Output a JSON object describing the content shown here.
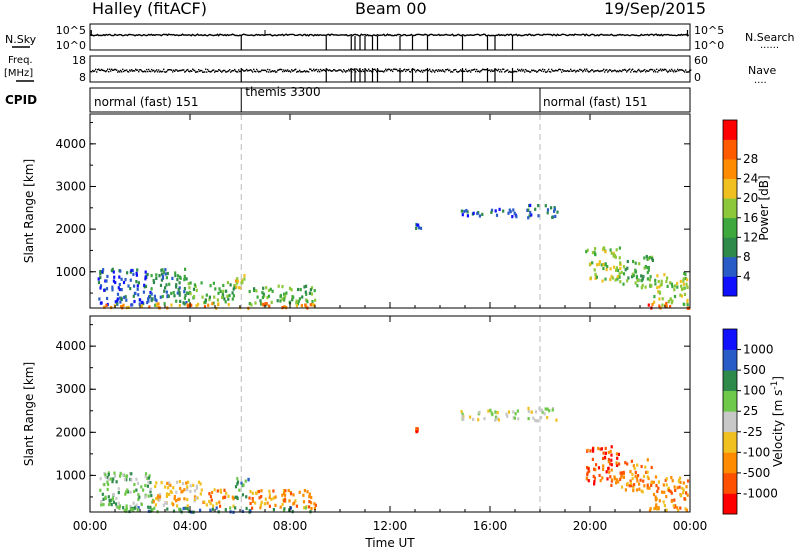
{
  "header": {
    "station": "Halley (fitACF)",
    "beam": "Beam 00",
    "date": "19/Sep/2015"
  },
  "nsky_panel": {
    "left_label": "N.Sky",
    "left_ticks": [
      "10^5",
      "10^0"
    ],
    "right_ticks": [
      "10^5",
      "10^0"
    ],
    "right_label": "N.Search",
    "right_marker": "......"
  },
  "freq_panel": {
    "left_label": "Freq.",
    "left_unit": "[MHz]",
    "left_ticks": [
      "18",
      "8"
    ],
    "right_ticks": [
      "60",
      "0"
    ],
    "right_label": "Nave",
    "right_marker": "...."
  },
  "cpid_panel": {
    "label": "CPID",
    "modes": [
      "normal (fast) 151",
      "themis 3300",
      "normal (fast) 151"
    ]
  },
  "colors": {
    "power_scale": [
      "#1010ff",
      "#2a5cc8",
      "#2e8a4a",
      "#3da83d",
      "#8dc83a",
      "#f0c020",
      "#ff8c00",
      "#ff5a00",
      "#ff0000"
    ],
    "velocity_scale": [
      "#ff0000",
      "#ff5000",
      "#ff8c00",
      "#f0c020",
      "#c8c8c8",
      "#6ec84a",
      "#2e8a4a",
      "#2a5cc8",
      "#1010ff"
    ]
  },
  "chart_data": [
    {
      "type": "heatmap",
      "title": "",
      "xlabel": "",
      "ylabel": "Slant Range [km]",
      "xlim": [
        "00:00",
        "24:00"
      ],
      "ylim": [
        150,
        4700
      ],
      "yticks": [
        "1000",
        "2000",
        "3000",
        "4000"
      ],
      "colorbar": {
        "label": "Power [dB]",
        "ticks": [
          "4",
          "8",
          "12",
          "16",
          "20",
          "24",
          "28"
        ],
        "range": [
          0,
          30
        ]
      },
      "patches": [
        {
          "t": [
            0.3,
            2.4
          ],
          "r": [
            250,
            1100
          ],
          "value": 6
        },
        {
          "t": [
            2.4,
            3.9
          ],
          "r": [
            250,
            1100
          ],
          "value": 9
        },
        {
          "t": [
            3.9,
            5.8
          ],
          "r": [
            300,
            800
          ],
          "value": 10
        },
        {
          "t": [
            5.7,
            6.3
          ],
          "r": [
            650,
            1000
          ],
          "value": 18
        },
        {
          "t": [
            6.3,
            9.0
          ],
          "r": [
            250,
            700
          ],
          "value": 10
        },
        {
          "t": [
            0.5,
            9.0
          ],
          "r": [
            180,
            290
          ],
          "value": 22
        },
        {
          "t": [
            13.0,
            13.2
          ],
          "r": [
            2050,
            2150
          ],
          "value": 6
        },
        {
          "t": [
            14.8,
            17.1
          ],
          "r": [
            2300,
            2500
          ],
          "value": 5
        },
        {
          "t": [
            17.4,
            18.7
          ],
          "r": [
            2300,
            2600
          ],
          "value": 6
        },
        {
          "t": [
            19.8,
            21.2
          ],
          "r": [
            800,
            1600
          ],
          "value": 14
        },
        {
          "t": [
            21.2,
            22.5
          ],
          "r": [
            650,
            1400
          ],
          "value": 12
        },
        {
          "t": [
            22.5,
            23.9
          ],
          "r": [
            250,
            1000
          ],
          "value": 15
        },
        {
          "t": [
            22.3,
            24.0
          ],
          "r": [
            180,
            300
          ],
          "value": 24
        }
      ]
    },
    {
      "type": "heatmap",
      "title": "",
      "xlabel": "Time UT",
      "ylabel": "Slant Range [km]",
      "xlim": [
        "00:00",
        "24:00"
      ],
      "ylim": [
        150,
        4700
      ],
      "xticks": [
        "00:00",
        "04:00",
        "08:00",
        "12:00",
        "16:00",
        "20:00",
        "00:00"
      ],
      "yticks": [
        "1000",
        "2000",
        "3000",
        "4000"
      ],
      "colorbar": {
        "label": "Velocity [m s^-1]",
        "ticks": [
          "-1000",
          "-500",
          "-100",
          "-25",
          "25",
          "100",
          "500",
          "1000"
        ]
      },
      "patches": [
        {
          "t": [
            0.3,
            2.5
          ],
          "r": [
            250,
            1100
          ],
          "value": 100
        },
        {
          "t": [
            2.5,
            4.5
          ],
          "r": [
            300,
            900
          ],
          "value": -50
        },
        {
          "t": [
            4.5,
            5.7
          ],
          "r": [
            300,
            700
          ],
          "value": -100
        },
        {
          "t": [
            5.7,
            6.3
          ],
          "r": [
            500,
            1000
          ],
          "value": 150
        },
        {
          "t": [
            6.3,
            9.0
          ],
          "r": [
            250,
            700
          ],
          "value": -100
        },
        {
          "t": [
            0.5,
            9.0
          ],
          "r": [
            180,
            290
          ],
          "value": 120
        },
        {
          "t": [
            13.0,
            13.2
          ],
          "r": [
            2050,
            2150
          ],
          "value": -800
        },
        {
          "t": [
            14.8,
            17.1
          ],
          "r": [
            2300,
            2550
          ],
          "value": 0
        },
        {
          "t": [
            17.4,
            18.7
          ],
          "r": [
            2300,
            2600
          ],
          "value": 0
        },
        {
          "t": [
            19.8,
            21.2
          ],
          "r": [
            800,
            1700
          ],
          "value": -600
        },
        {
          "t": [
            21.2,
            22.5
          ],
          "r": [
            650,
            1400
          ],
          "value": -400
        },
        {
          "t": [
            22.5,
            23.9
          ],
          "r": [
            250,
            1000
          ],
          "value": -300
        },
        {
          "t": [
            22.3,
            24.0
          ],
          "r": [
            180,
            300
          ],
          "value": -200
        }
      ]
    }
  ]
}
